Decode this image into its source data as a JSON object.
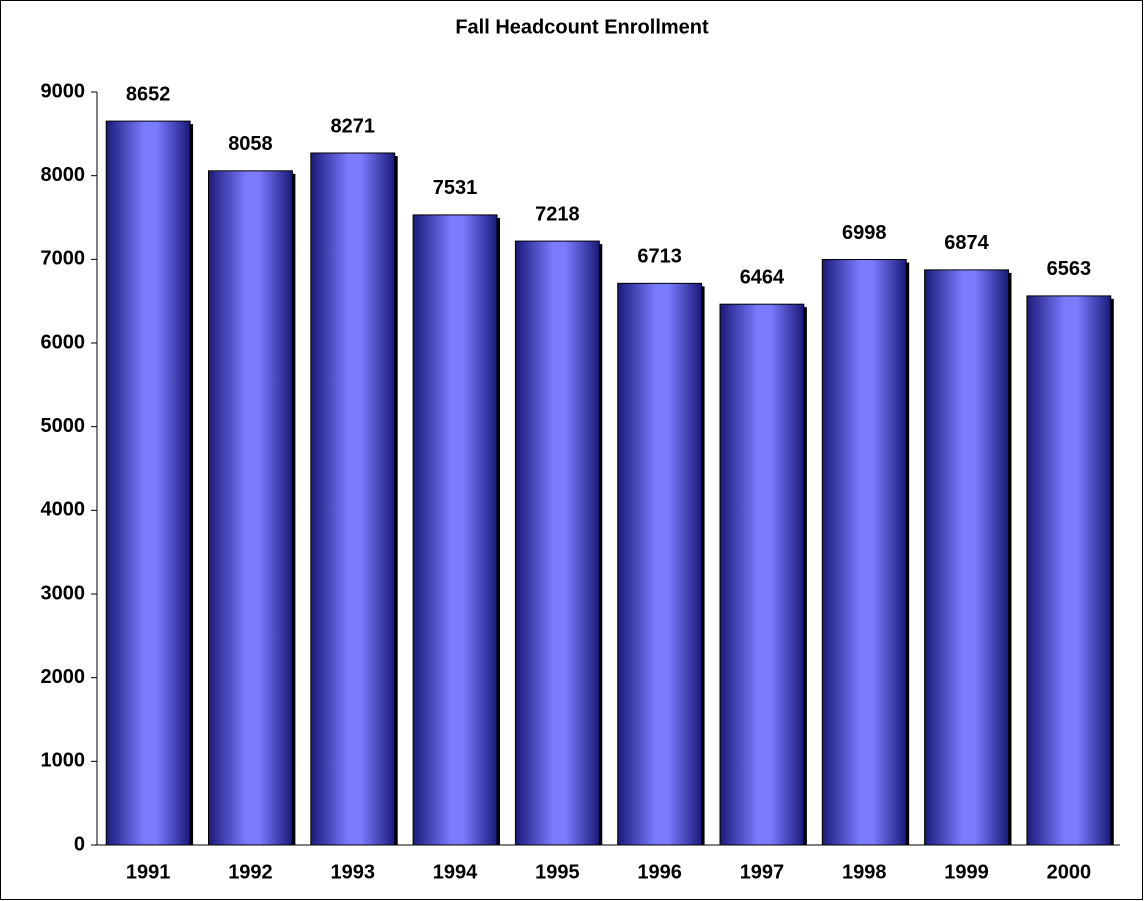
{
  "chart_data": {
    "type": "bar",
    "title": "Fall Headcount Enrollment",
    "categories": [
      "1991",
      "1992",
      "1993",
      "1994",
      "1995",
      "1996",
      "1997",
      "1998",
      "1999",
      "2000"
    ],
    "values": [
      8652,
      8058,
      8271,
      7531,
      7218,
      6713,
      6464,
      6998,
      6874,
      6563
    ],
    "color": "#7b7bff",
    "ylim": [
      0,
      9000
    ],
    "yticks": [
      0,
      1000,
      2000,
      3000,
      4000,
      5000,
      6000,
      7000,
      8000,
      9000
    ],
    "grid": false
  }
}
